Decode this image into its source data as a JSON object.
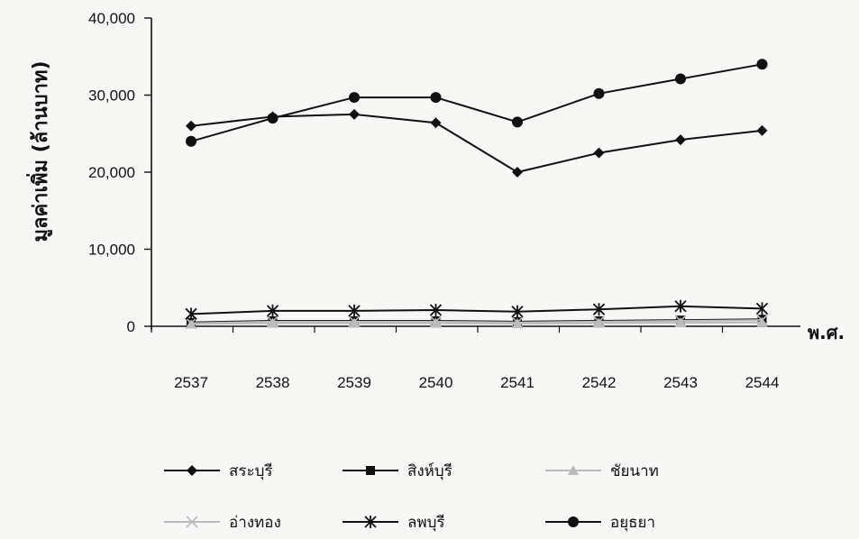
{
  "chart_data": {
    "type": "line",
    "ylabel": "มูลค่าเพิ่ม (ล้านบาท)",
    "xlabel": "พ.ศ.",
    "categories": [
      "2537",
      "2538",
      "2539",
      "2540",
      "2541",
      "2542",
      "2543",
      "2544"
    ],
    "ylim": [
      0,
      40000
    ],
    "yticks": [
      "0",
      "10,000",
      "20,000",
      "30,000",
      "40,000"
    ],
    "grid": false,
    "legend_position": "bottom",
    "series": [
      {
        "name": "สระบุรี",
        "marker": "diamond",
        "color": "#111111",
        "values": [
          26000,
          27200,
          27500,
          26400,
          20000,
          22500,
          24200,
          25400
        ]
      },
      {
        "name": "สิงห์บุรี",
        "marker": "square",
        "color": "#111111",
        "values": [
          500,
          700,
          700,
          700,
          600,
          700,
          800,
          900
        ]
      },
      {
        "name": "ชัยนาท",
        "marker": "triangle",
        "color": "#bbbbbb",
        "values": [
          300,
          400,
          400,
          400,
          350,
          400,
          450,
          500
        ]
      },
      {
        "name": "อ่างทอง",
        "marker": "x",
        "color": "#bbbbbb",
        "values": [
          400,
          600,
          600,
          600,
          500,
          600,
          700,
          800
        ]
      },
      {
        "name": "ลพบุรี",
        "marker": "star",
        "color": "#111111",
        "values": [
          1600,
          2000,
          2000,
          2100,
          1900,
          2200,
          2600,
          2300
        ]
      },
      {
        "name": "อยุธยา",
        "marker": "circle",
        "color": "#111111",
        "values": [
          24000,
          27000,
          29700,
          29700,
          26500,
          30200,
          32100,
          34000
        ]
      }
    ]
  }
}
